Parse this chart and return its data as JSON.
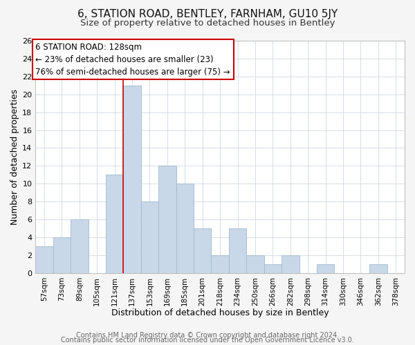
{
  "title": "6, STATION ROAD, BENTLEY, FARNHAM, GU10 5JY",
  "subtitle": "Size of property relative to detached houses in Bentley",
  "xlabel": "Distribution of detached houses by size in Bentley",
  "ylabel": "Number of detached properties",
  "bin_labels": [
    "57sqm",
    "73sqm",
    "89sqm",
    "105sqm",
    "121sqm",
    "137sqm",
    "153sqm",
    "169sqm",
    "185sqm",
    "201sqm",
    "218sqm",
    "234sqm",
    "250sqm",
    "266sqm",
    "282sqm",
    "298sqm",
    "314sqm",
    "330sqm",
    "346sqm",
    "362sqm",
    "378sqm"
  ],
  "bar_values": [
    3,
    4,
    6,
    0,
    11,
    21,
    8,
    12,
    10,
    5,
    2,
    5,
    2,
    1,
    2,
    0,
    1,
    0,
    0,
    1,
    0
  ],
  "bar_color": "#c8d8e8",
  "bar_edge_color": "#a0b8cc",
  "vline_x": 4.5,
  "vline_color": "#cc0000",
  "annotation_line1": "6 STATION ROAD: 128sqm",
  "annotation_line2": "← 23% of detached houses are smaller (23)",
  "annotation_line3": "76% of semi-detached houses are larger (75) →",
  "box_edge_color": "#cc0000",
  "ylim": [
    0,
    26
  ],
  "yticks": [
    0,
    2,
    4,
    6,
    8,
    10,
    12,
    14,
    16,
    18,
    20,
    22,
    24,
    26
  ],
  "footer_line1": "Contains HM Land Registry data © Crown copyright and database right 2024.",
  "footer_line2": "Contains public sector information licensed under the Open Government Licence v3.0.",
  "bg_color": "#f5f5f5",
  "plot_bg_color": "#ffffff",
  "title_fontsize": 11,
  "subtitle_fontsize": 9.5,
  "xlabel_fontsize": 9,
  "ylabel_fontsize": 9,
  "annotation_fontsize": 8.5,
  "footer_fontsize": 7
}
